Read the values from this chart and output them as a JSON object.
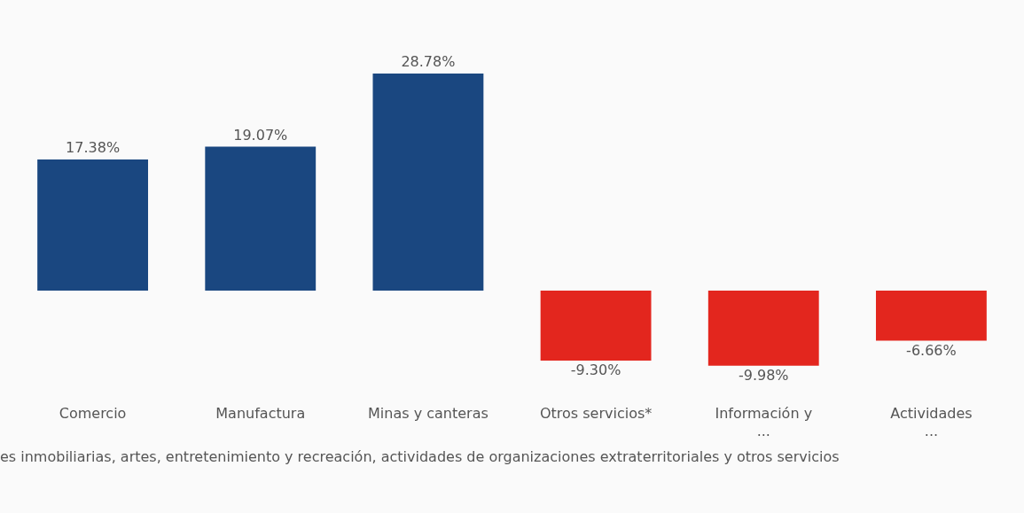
{
  "chart_data": {
    "type": "bar",
    "categories": [
      "Comercio",
      "Manufactura",
      "Minas y canteras",
      "Otros servicios*",
      "Información y\n...",
      "Actividades\n..."
    ],
    "values": [
      17.38,
      19.07,
      28.78,
      -9.3,
      -9.98,
      -6.66
    ],
    "colors": [
      "#1a4780",
      "#1a4780",
      "#1a4780",
      "#e3261e",
      "#e3261e",
      "#e3261e"
    ],
    "value_labels": [
      "17.38%",
      "19.07%",
      "28.78%",
      "-9.30%",
      "-9.98%",
      "-6.66%"
    ],
    "annotations": [
      "es inmobiliarias, artes, entretenimiento y recreación, actividades de organizaciones extraterritoriales y otros servicios"
    ],
    "tick_labels": "x",
    "grid": false,
    "legend": false
  }
}
